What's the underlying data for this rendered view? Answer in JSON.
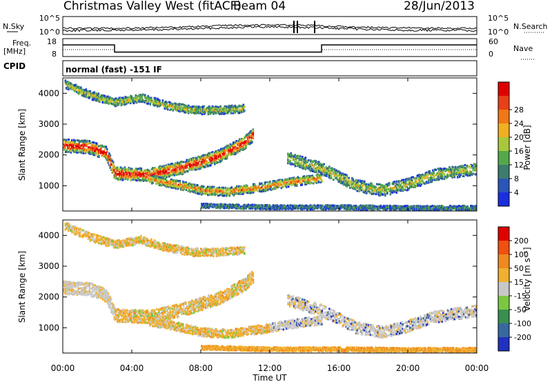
{
  "header": {
    "title": "Christmas Valley West (fitACF)",
    "beam": "Beam 04",
    "date": "28/Jun/2013"
  },
  "panels": {
    "noise": {
      "left_label": "N.Sky",
      "right_label": "N.Search",
      "left_ticks": [
        "10^5",
        "10^0"
      ],
      "right_ticks": [
        "10^5",
        "10^0"
      ]
    },
    "freq": {
      "left_label_1": "Freq.",
      "left_label_2": "[MHz]",
      "right_label": "Nave",
      "left_ticks": [
        "18",
        "8"
      ],
      "right_ticks": [
        "60",
        "0"
      ]
    },
    "cpid": {
      "label": "CPID",
      "text": "normal (fast) -151 IF"
    }
  },
  "axes": {
    "ylabel": "Slant Range [km]",
    "xlabel": "Time UT",
    "y_ticks": [
      "1000",
      "2000",
      "3000",
      "4000"
    ],
    "x_ticks": [
      "00:00",
      "04:00",
      "08:00",
      "12:00",
      "16:00",
      "20:00",
      "00:00"
    ]
  },
  "colorbars": {
    "power": {
      "label": "Power [dB]",
      "ticks": [
        "4",
        "8",
        "12",
        "16",
        "20",
        "24",
        "28"
      ],
      "colors": [
        "#1a2ee0",
        "#2b55b8",
        "#3d7d6e",
        "#55a84a",
        "#a8c83c",
        "#f0b020",
        "#f07818",
        "#e84018",
        "#e00000"
      ]
    },
    "velocity": {
      "label": "Velocity [m s⁻¹]",
      "ticks": [
        "200",
        "100",
        "50",
        "15",
        "-15",
        "-50",
        "-100",
        "-200"
      ],
      "colors": [
        "#2030c0",
        "#3868a0",
        "#3a8e50",
        "#7ac840",
        "#c8c8c8",
        "#f0b030",
        "#f08820",
        "#f05010",
        "#e00000"
      ]
    }
  },
  "chart_data": {
    "type": "heatmap",
    "x_range_hours": [
      0,
      24
    ],
    "y_range_km": [
      180,
      4500
    ],
    "x_tick_values": [
      "00:00",
      "04:00",
      "08:00",
      "12:00",
      "16:00",
      "20:00",
      "00:00"
    ],
    "cpid": "normal (fast) -151 IF",
    "freq_mhz": {
      "segments": [
        {
          "start": "00:00",
          "end": "03:00",
          "value": 14.5
        },
        {
          "start": "03:00",
          "end": "15:00",
          "value": 10.5
        },
        {
          "start": "15:00",
          "end": "24:00",
          "value": 14.5
        }
      ]
    },
    "power_db_scale": [
      0,
      30
    ],
    "velocity_scale_ms": [
      -250,
      250
    ],
    "echo_regions": [
      {
        "label": "upper band",
        "points": [
          [
            0.1,
            4300
          ],
          [
            1.5,
            3950
          ],
          [
            3.0,
            3700
          ],
          [
            4.5,
            3850
          ],
          [
            6.0,
            3600
          ],
          [
            7.5,
            3450
          ],
          [
            9.0,
            3450
          ],
          [
            10.5,
            3500
          ]
        ]
      },
      {
        "label": "main band",
        "points": [
          [
            0,
            2300
          ],
          [
            1.5,
            2250
          ],
          [
            2.5,
            2050
          ],
          [
            3.0,
            1400
          ],
          [
            5.0,
            1350
          ],
          [
            7.0,
            1600
          ],
          [
            9.0,
            1950
          ],
          [
            10.5,
            2400
          ],
          [
            11.0,
            2650
          ]
        ]
      },
      {
        "label": "lower band",
        "points": [
          [
            5.0,
            1200
          ],
          [
            6.5,
            1050
          ],
          [
            8.0,
            850
          ],
          [
            9.5,
            800
          ],
          [
            11.5,
            950
          ],
          [
            13.0,
            1100
          ],
          [
            15.0,
            1250
          ]
        ]
      },
      {
        "label": "late-day band",
        "points": [
          [
            13.0,
            1900
          ],
          [
            15.0,
            1550
          ],
          [
            17.0,
            1000
          ],
          [
            18.5,
            850
          ],
          [
            20.0,
            1050
          ],
          [
            21.5,
            1350
          ],
          [
            24.0,
            1550
          ]
        ]
      },
      {
        "label": "near-range strip",
        "points": [
          [
            8.0,
            350
          ],
          [
            12.0,
            300
          ],
          [
            16.0,
            300
          ],
          [
            20.0,
            280
          ],
          [
            24.0,
            280
          ]
        ]
      }
    ]
  }
}
